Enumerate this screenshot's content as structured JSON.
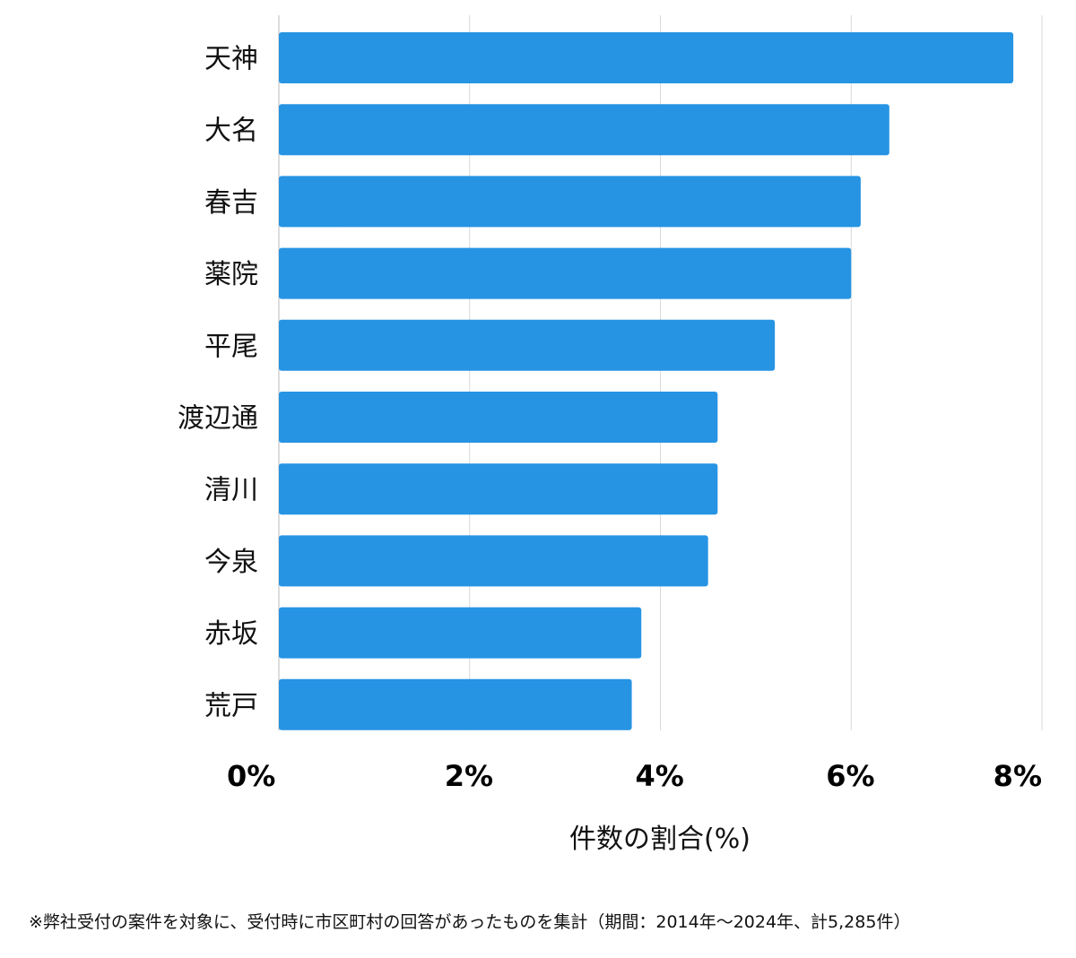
{
  "chart_data": {
    "type": "bar",
    "orientation": "horizontal",
    "categories": [
      "天神",
      "大名",
      "春吉",
      "薬院",
      "平尾",
      "渡辺通",
      "清川",
      "今泉",
      "赤坂",
      "荒戸"
    ],
    "values": [
      7.7,
      6.4,
      6.1,
      6.0,
      5.2,
      4.6,
      4.6,
      4.5,
      3.8,
      3.7
    ],
    "xlabel": "件数の割合(%)",
    "ylabel": "",
    "xlim": [
      0,
      8
    ],
    "x_ticks": [
      0,
      2,
      4,
      6,
      8
    ],
    "x_tick_labels": [
      "0%",
      "2%",
      "4%",
      "6%",
      "8%"
    ],
    "grid": "vertical",
    "bar_color": "#2694e3",
    "grid_color": "#d9d9d9",
    "axis_color": "#bbbbbb"
  },
  "footnote": "※弊社受付の案件を対象に、受付時に市区町村の回答があったものを集計（期間：2014年〜2024年、計5,285件）"
}
